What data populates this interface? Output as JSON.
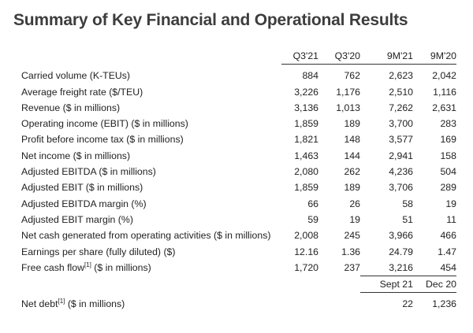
{
  "title": "Summary of Key Financial and Operational Results",
  "columns": [
    "Q3'21",
    "Q3'20",
    "9M'21",
    "9M'20"
  ],
  "rows": [
    {
      "label": "Carried volume (K-TEUs)",
      "values": [
        "884",
        "762",
        "2,623",
        "2,042"
      ]
    },
    {
      "label": "Average freight rate ($/TEU)",
      "values": [
        "3,226",
        "1,176",
        "2,510",
        "1,116"
      ]
    },
    {
      "label": "Revenue ($ in millions)",
      "values": [
        "3,136",
        "1,013",
        "7,262",
        "2,631"
      ]
    },
    {
      "label": "Operating income (EBIT) ($ in millions)",
      "values": [
        "1,859",
        "189",
        "3,700",
        "283"
      ]
    },
    {
      "label": "Profit before income tax ($ in millions)",
      "values": [
        "1,821",
        "148",
        "3,577",
        "169"
      ]
    },
    {
      "label": "Net income ($ in millions)",
      "values": [
        "1,463",
        "144",
        "2,941",
        "158"
      ]
    },
    {
      "label": "Adjusted EBITDA ($ in millions)",
      "values": [
        "2,080",
        "262",
        "4,236",
        "504"
      ]
    },
    {
      "label": "Adjusted EBIT ($ in millions)",
      "values": [
        "1,859",
        "189",
        "3,706",
        "289"
      ]
    },
    {
      "label": "Adjusted EBITDA margin (%)",
      "values": [
        "66",
        "26",
        "58",
        "19"
      ]
    },
    {
      "label": "Adjusted EBIT margin (%)",
      "values": [
        "59",
        "19",
        "51",
        "11"
      ]
    },
    {
      "label": "Net cash generated from operating activities ($ in millions)",
      "values": [
        "2,008",
        "245",
        "3,966",
        "466"
      ]
    },
    {
      "label": "Earnings per share (fully diluted) ($)",
      "values": [
        "12.16",
        "1.36",
        "24.79",
        "1.47"
      ]
    },
    {
      "label_main": "Free cash flow",
      "label_sup": "[1]",
      "label_rest": " ($ in millions)",
      "values": [
        "1,720",
        "237",
        "3,216",
        "454"
      ]
    }
  ],
  "balance_columns": [
    "Sept 21",
    "Dec 20"
  ],
  "net_debt": {
    "label_main": "Net debt",
    "label_sup": "[1]",
    "label_rest": " ($ in millions)",
    "values": [
      "22",
      "1,236"
    ]
  }
}
